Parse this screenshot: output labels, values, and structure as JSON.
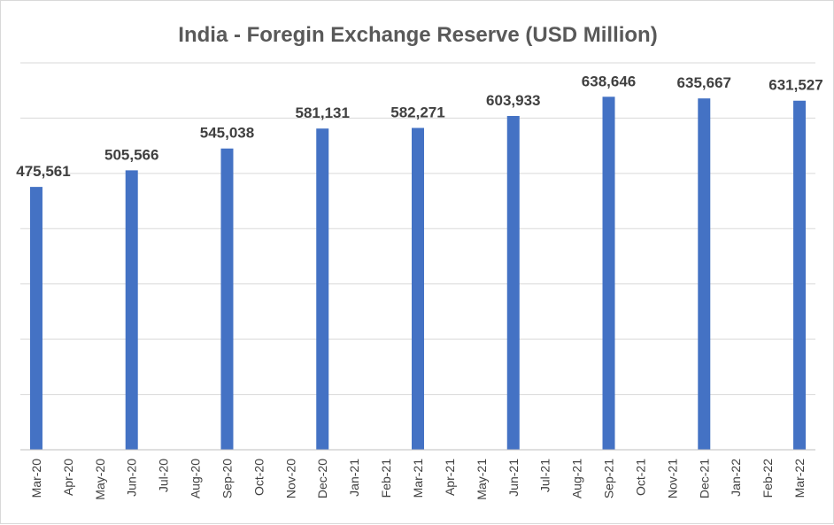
{
  "chart_data": {
    "type": "bar",
    "title": "India - Foregin Exchange Reserve (USD Million)",
    "xlabel": "",
    "ylabel": "",
    "categories": [
      "Mar-20",
      "Apr-20",
      "May-20",
      "Jun-20",
      "Jul-20",
      "Aug-20",
      "Sep-20",
      "Oct-20",
      "Nov-20",
      "Dec-20",
      "Jan-21",
      "Feb-21",
      "Mar-21",
      "Apr-21",
      "May-21",
      "Jun-21",
      "Jul-21",
      "Aug-21",
      "Sep-21",
      "Oct-21",
      "Nov-21",
      "Dec-21",
      "Jan-22",
      "Feb-22",
      "Mar-22"
    ],
    "values": [
      475561,
      null,
      null,
      505566,
      null,
      null,
      545038,
      null,
      null,
      581131,
      null,
      null,
      582271,
      null,
      null,
      603933,
      null,
      null,
      638646,
      null,
      null,
      635667,
      null,
      null,
      631527
    ],
    "data_labels": [
      "475,561",
      "",
      "",
      "505,566",
      "",
      "",
      "545,038",
      "",
      "",
      "581,131",
      "",
      "",
      "582,271",
      "",
      "",
      "603,933",
      "",
      "",
      "638,646",
      "",
      "",
      "635,667",
      "",
      "",
      "631,527"
    ],
    "ylim": [
      0,
      700000
    ],
    "ytick_step": 100000,
    "grid": true,
    "bar_color": "#4472c4",
    "grid_color": "#d9d9d9",
    "axis_color": "#bfbfbf"
  }
}
